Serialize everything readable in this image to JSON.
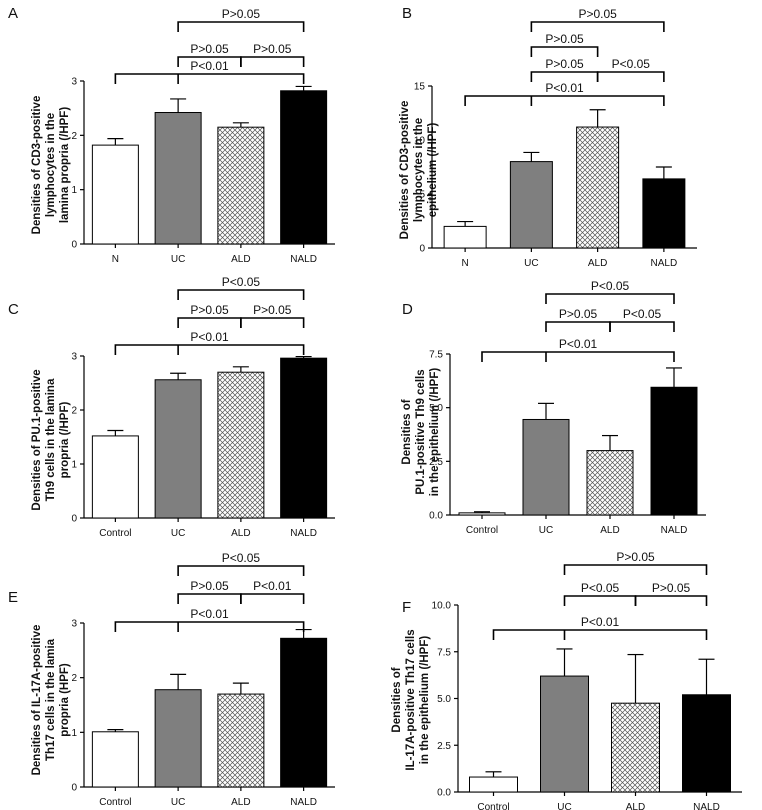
{
  "figure": {
    "chart_data": [
      {
        "panel": "A",
        "type": "bar",
        "ylabel": [
          "Densities of CD3-positive",
          "lymphocytes in the",
          "lamina propria (/HPF)"
        ],
        "categories": [
          "N",
          "UC",
          "ALD",
          "NALD"
        ],
        "values": [
          1.82,
          2.42,
          2.15,
          2.82
        ],
        "errors": [
          0.12,
          0.25,
          0.08,
          0.08
        ],
        "fills": [
          "white",
          "gray",
          "hatch",
          "black"
        ],
        "ylim": [
          0,
          3
        ],
        "yticks": [
          "0",
          "1",
          "2",
          "3"
        ],
        "comparisons": [
          {
            "from": 0,
            "to": 3,
            "mid": 1,
            "label": "P<0.01"
          },
          {
            "from": 1,
            "to": 2,
            "label": "P>0.05"
          },
          {
            "from": 2,
            "to": 3,
            "label": "P>0.05"
          },
          {
            "from": 1,
            "to": 3,
            "label": "P>0.05"
          }
        ]
      },
      {
        "panel": "B",
        "type": "bar",
        "ylabel": [
          "Densities of CD3-positive",
          "lymphocytes in the",
          "epithelium (/HPF)"
        ],
        "categories": [
          "N",
          "UC",
          "ALD",
          "NALD"
        ],
        "values": [
          2.0,
          8.0,
          11.2,
          6.4
        ],
        "errors": [
          0.45,
          0.85,
          1.6,
          1.1
        ],
        "fills": [
          "white",
          "gray",
          "hatch",
          "black"
        ],
        "ylim": [
          0,
          15
        ],
        "yticks": [
          "0",
          "5",
          "10",
          "15"
        ],
        "comparisons": [
          {
            "from": 0,
            "to": 3,
            "mid": 1,
            "label": "P<0.01"
          },
          {
            "from": 1,
            "to": 2,
            "label": "P>0.05"
          },
          {
            "from": 2,
            "to": 3,
            "label": "P<0.05"
          },
          {
            "from": 1,
            "to": 2,
            "label": "P>0.05"
          },
          {
            "from": 1,
            "to": 3,
            "label": "P>0.05"
          }
        ]
      },
      {
        "panel": "C",
        "type": "bar",
        "ylabel": [
          "Densities of PU.1-positive",
          "Th9 cells in the lamina",
          "propria (/HPF)"
        ],
        "categories": [
          "Control",
          "UC",
          "ALD",
          "NALD"
        ],
        "values": [
          1.52,
          2.56,
          2.7,
          2.96
        ],
        "errors": [
          0.1,
          0.12,
          0.1,
          0.03
        ],
        "fills": [
          "white",
          "gray",
          "hatch",
          "black"
        ],
        "ylim": [
          0,
          3
        ],
        "yticks": [
          "0",
          "1",
          "2",
          "3"
        ],
        "comparisons": [
          {
            "from": 0,
            "to": 3,
            "mid": 1,
            "label": "P<0.01"
          },
          {
            "from": 1,
            "to": 2,
            "label": "P>0.05"
          },
          {
            "from": 2,
            "to": 3,
            "label": "P>0.05"
          },
          {
            "from": 1,
            "to": 3,
            "label": "P<0.05"
          }
        ]
      },
      {
        "panel": "D",
        "type": "bar",
        "ylabel": [
          "Densities of",
          "PU.1-positive Th9 cells",
          "in the epithelium (/HPF)"
        ],
        "categories": [
          "Control",
          "UC",
          "ALD",
          "NALD"
        ],
        "values": [
          0.1,
          4.45,
          3.0,
          5.95
        ],
        "errors": [
          0.05,
          0.75,
          0.7,
          0.9
        ],
        "fills": [
          "white",
          "gray",
          "hatch",
          "black"
        ],
        "ylim": [
          0,
          7.5
        ],
        "yticks": [
          "0.0",
          "2.5",
          "5.0",
          "7.5"
        ],
        "comparisons": [
          {
            "from": 0,
            "to": 3,
            "mid": 1,
            "label": "P<0.01"
          },
          {
            "from": 1,
            "to": 2,
            "label": "P>0.05"
          },
          {
            "from": 2,
            "to": 3,
            "label": "P<0.05"
          },
          {
            "from": 1,
            "to": 3,
            "label": "P<0.05"
          }
        ]
      },
      {
        "panel": "E",
        "type": "bar",
        "ylabel": [
          "Densities of IL-17A-positive",
          "Th17 cells in the lamia",
          "propria (HPF)"
        ],
        "categories": [
          "Control",
          "UC",
          "ALD",
          "NALD"
        ],
        "values": [
          1.01,
          1.78,
          1.7,
          2.72
        ],
        "errors": [
          0.04,
          0.28,
          0.2,
          0.16
        ],
        "fills": [
          "white",
          "gray",
          "hatch",
          "black"
        ],
        "ylim": [
          0,
          3
        ],
        "yticks": [
          "0",
          "1",
          "2",
          "3"
        ],
        "comparisons": [
          {
            "from": 0,
            "to": 3,
            "mid": 1,
            "label": "P<0.01"
          },
          {
            "from": 1,
            "to": 2,
            "label": "P>0.05"
          },
          {
            "from": 2,
            "to": 3,
            "label": "P<0.01"
          },
          {
            "from": 1,
            "to": 3,
            "label": "P<0.05"
          }
        ]
      },
      {
        "panel": "F",
        "type": "bar",
        "ylabel": [
          "Densities of",
          "IL-17A-positive Th17 cells",
          "in the epithelium (/HPF)"
        ],
        "categories": [
          "Control",
          "UC",
          "ALD",
          "NALD"
        ],
        "values": [
          0.8,
          6.2,
          4.75,
          5.2
        ],
        "errors": [
          0.28,
          1.45,
          2.6,
          1.9
        ],
        "fills": [
          "white",
          "gray",
          "hatch",
          "black"
        ],
        "ylim": [
          0,
          10
        ],
        "yticks": [
          "0.0",
          "2.5",
          "5.0",
          "7.5",
          "10.0"
        ],
        "comparisons": [
          {
            "from": 0,
            "to": 3,
            "mid": 1,
            "label": "P<0.01"
          },
          {
            "from": 1,
            "to": 2,
            "label": "P<0.05"
          },
          {
            "from": 2,
            "to": 3,
            "label": "P>0.05"
          },
          {
            "from": 1,
            "to": 3,
            "label": "P>0.05"
          }
        ]
      }
    ]
  },
  "colors": {
    "gray": "#7f7f7f",
    "black": "#000000",
    "white": "#ffffff",
    "axis": "#000000"
  }
}
